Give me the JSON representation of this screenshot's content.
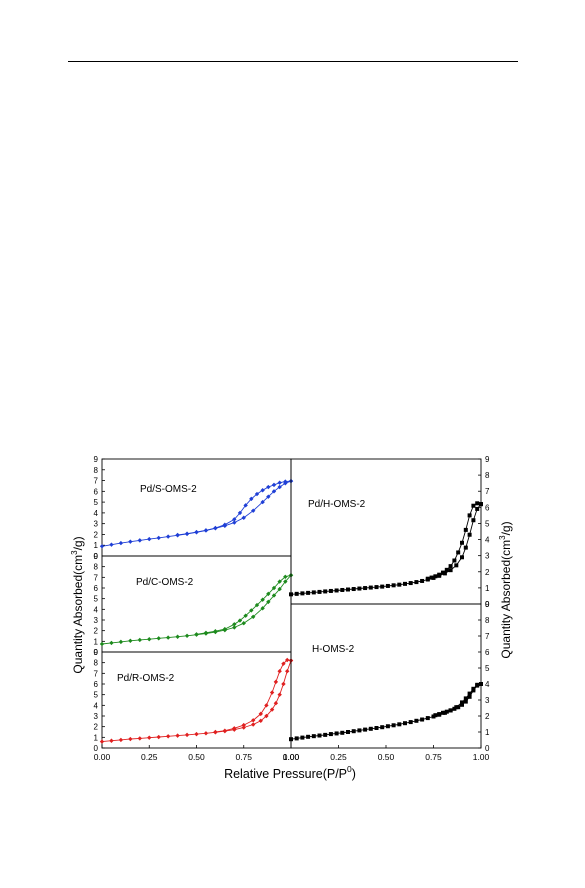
{
  "figure": {
    "xlabel_main": "Relative Pressure(P/P",
    "xlabel_sup": "0",
    "xlabel_close": ")",
    "ylabel_left_main": "Quantity Absorbed(cm",
    "ylabel_left_sup": "3",
    "ylabel_left_close": "/g)",
    "ylabel_right_main": "Quantity Absorbed(cm",
    "ylabel_right_sup": "3",
    "ylabel_right_close": "/g)"
  },
  "chart_data": [
    {
      "type": "line",
      "label": "Pd/S-OMS-2",
      "color": "#1f3fd6",
      "marker": "diamond",
      "xlim": [
        0,
        1
      ],
      "ylim": [
        0,
        9
      ],
      "yticks": [
        0,
        1,
        2,
        3,
        4,
        5,
        6,
        7,
        8,
        9
      ],
      "xticks": [],
      "series": [
        {
          "x": [
            0.0,
            0.05,
            0.1,
            0.15,
            0.2,
            0.25,
            0.3,
            0.35,
            0.4,
            0.45,
            0.5,
            0.55,
            0.6,
            0.65,
            0.7,
            0.75,
            0.8,
            0.85,
            0.88,
            0.91,
            0.94,
            0.97,
            1.0
          ],
          "y": [
            0.9,
            1.05,
            1.2,
            1.33,
            1.45,
            1.57,
            1.68,
            1.8,
            1.92,
            2.05,
            2.2,
            2.37,
            2.57,
            2.8,
            3.1,
            3.55,
            4.2,
            5.0,
            5.5,
            6.0,
            6.4,
            6.75,
            6.95
          ]
        },
        {
          "x": [
            1.0,
            0.97,
            0.94,
            0.91,
            0.88,
            0.85,
            0.82,
            0.79,
            0.76,
            0.73,
            0.7,
            0.65,
            0.6,
            0.55,
            0.5,
            0.45,
            0.4
          ],
          "y": [
            6.95,
            6.9,
            6.8,
            6.6,
            6.4,
            6.1,
            5.75,
            5.3,
            4.7,
            4.0,
            3.4,
            2.9,
            2.6,
            2.38,
            2.22,
            2.07,
            1.95
          ]
        }
      ]
    },
    {
      "type": "line",
      "label": "Pd/C-OMS-2",
      "color": "#1d8a1d",
      "marker": "diamond",
      "xlim": [
        0,
        1
      ],
      "ylim": [
        0,
        9
      ],
      "yticks": [
        0,
        1,
        2,
        3,
        4,
        5,
        6,
        7,
        8,
        9
      ],
      "xticks": [],
      "series": [
        {
          "x": [
            0.0,
            0.05,
            0.1,
            0.15,
            0.2,
            0.25,
            0.3,
            0.35,
            0.4,
            0.45,
            0.5,
            0.55,
            0.6,
            0.65,
            0.7,
            0.75,
            0.8,
            0.85,
            0.88,
            0.91,
            0.94,
            0.97,
            1.0
          ],
          "y": [
            0.75,
            0.85,
            0.95,
            1.05,
            1.13,
            1.2,
            1.28,
            1.35,
            1.43,
            1.52,
            1.62,
            1.73,
            1.87,
            2.05,
            2.3,
            2.7,
            3.3,
            4.1,
            4.7,
            5.3,
            5.9,
            6.6,
            7.2
          ]
        },
        {
          "x": [
            1.0,
            0.97,
            0.94,
            0.91,
            0.88,
            0.85,
            0.82,
            0.79,
            0.76,
            0.73,
            0.7,
            0.65,
            0.6,
            0.55,
            0.5
          ],
          "y": [
            7.2,
            7.05,
            6.6,
            6.0,
            5.45,
            4.9,
            4.4,
            3.9,
            3.4,
            2.95,
            2.6,
            2.15,
            1.95,
            1.8,
            1.66
          ]
        }
      ]
    },
    {
      "type": "line",
      "label": "Pd/R-OMS-2",
      "color": "#e02020",
      "marker": "diamond",
      "xlim": [
        0,
        1
      ],
      "ylim": [
        0,
        9
      ],
      "yticks": [
        0,
        1,
        2,
        3,
        4,
        5,
        6,
        7,
        8,
        9
      ],
      "xticks": [
        "0.00",
        "0.25",
        "0.50",
        "0.75",
        "1.00"
      ],
      "series": [
        {
          "x": [
            0.0,
            0.05,
            0.1,
            0.15,
            0.2,
            0.25,
            0.3,
            0.35,
            0.4,
            0.45,
            0.5,
            0.55,
            0.6,
            0.65,
            0.7,
            0.75,
            0.8,
            0.84,
            0.87,
            0.9,
            0.92,
            0.94,
            0.96,
            0.98,
            1.0
          ],
          "y": [
            0.6,
            0.68,
            0.76,
            0.84,
            0.9,
            0.97,
            1.03,
            1.1,
            1.16,
            1.23,
            1.3,
            1.38,
            1.47,
            1.58,
            1.72,
            1.92,
            2.2,
            2.55,
            3.0,
            3.6,
            4.2,
            5.0,
            6.0,
            7.2,
            8.2
          ]
        },
        {
          "x": [
            1.0,
            0.98,
            0.96,
            0.94,
            0.92,
            0.9,
            0.87,
            0.84,
            0.8,
            0.75,
            0.7,
            0.65,
            0.6
          ],
          "y": [
            8.2,
            8.25,
            7.9,
            7.2,
            6.2,
            5.2,
            4.0,
            3.2,
            2.6,
            2.15,
            1.85,
            1.62,
            1.5
          ]
        }
      ]
    },
    {
      "type": "line",
      "label": "Pd/H-OMS-2",
      "color": "#000000",
      "marker": "square",
      "xlim": [
        0,
        1
      ],
      "ylim": [
        0,
        9
      ],
      "yticks": [
        0,
        1,
        2,
        3,
        4,
        5,
        6,
        7,
        8,
        9
      ],
      "xticks": [],
      "series": [
        {
          "x": [
            0.0,
            0.03,
            0.06,
            0.09,
            0.12,
            0.15,
            0.18,
            0.21,
            0.24,
            0.27,
            0.3,
            0.33,
            0.36,
            0.39,
            0.42,
            0.45,
            0.48,
            0.51,
            0.54,
            0.57,
            0.6,
            0.63,
            0.66,
            0.69,
            0.72,
            0.75,
            0.78,
            0.81,
            0.84,
            0.87,
            0.9,
            0.92,
            0.94,
            0.96,
            0.98,
            1.0
          ],
          "y": [
            0.6,
            0.63,
            0.66,
            0.69,
            0.72,
            0.75,
            0.78,
            0.81,
            0.84,
            0.87,
            0.9,
            0.93,
            0.96,
            0.99,
            1.02,
            1.05,
            1.08,
            1.12,
            1.16,
            1.2,
            1.25,
            1.3,
            1.36,
            1.43,
            1.52,
            1.62,
            1.75,
            1.9,
            2.1,
            2.4,
            2.9,
            3.5,
            4.3,
            5.2,
            5.9,
            6.2
          ]
        },
        {
          "x": [
            1.0,
            0.98,
            0.96,
            0.94,
            0.92,
            0.9,
            0.88,
            0.86,
            0.84,
            0.82,
            0.8,
            0.78,
            0.76,
            0.74,
            0.72
          ],
          "y": [
            6.2,
            6.25,
            6.1,
            5.5,
            4.6,
            3.8,
            3.2,
            2.7,
            2.35,
            2.12,
            1.95,
            1.82,
            1.72,
            1.64,
            1.57
          ]
        }
      ]
    },
    {
      "type": "line",
      "label": "H-OMS-2",
      "color": "#000000",
      "marker": "square",
      "xlim": [
        0,
        1
      ],
      "ylim": [
        0,
        9
      ],
      "yticks": [
        0,
        1,
        2,
        3,
        4,
        5,
        6,
        7,
        8,
        9
      ],
      "xticks": [
        "0.00",
        "0.25",
        "0.50",
        "0.75",
        "1.00"
      ],
      "series": [
        {
          "x": [
            0.0,
            0.03,
            0.06,
            0.09,
            0.12,
            0.15,
            0.18,
            0.21,
            0.24,
            0.27,
            0.3,
            0.33,
            0.36,
            0.39,
            0.42,
            0.45,
            0.48,
            0.51,
            0.54,
            0.57,
            0.6,
            0.63,
            0.66,
            0.69,
            0.72,
            0.75,
            0.78,
            0.81,
            0.84,
            0.87,
            0.9,
            0.92,
            0.94,
            0.96,
            0.98,
            1.0
          ],
          "y": [
            0.55,
            0.6,
            0.65,
            0.7,
            0.74,
            0.78,
            0.82,
            0.87,
            0.91,
            0.95,
            1.0,
            1.05,
            1.1,
            1.15,
            1.2,
            1.25,
            1.3,
            1.36,
            1.42,
            1.48,
            1.55,
            1.62,
            1.7,
            1.78,
            1.87,
            1.97,
            2.08,
            2.2,
            2.35,
            2.55,
            2.85,
            3.1,
            3.4,
            3.7,
            3.95,
            4.0
          ]
        },
        {
          "x": [
            1.0,
            0.98,
            0.96,
            0.94,
            0.92,
            0.9,
            0.88,
            0.86,
            0.84,
            0.82,
            0.8,
            0.78,
            0.76
          ],
          "y": [
            4.0,
            3.9,
            3.6,
            3.2,
            2.9,
            2.7,
            2.55,
            2.45,
            2.35,
            2.27,
            2.2,
            2.12,
            2.05
          ]
        }
      ]
    }
  ]
}
